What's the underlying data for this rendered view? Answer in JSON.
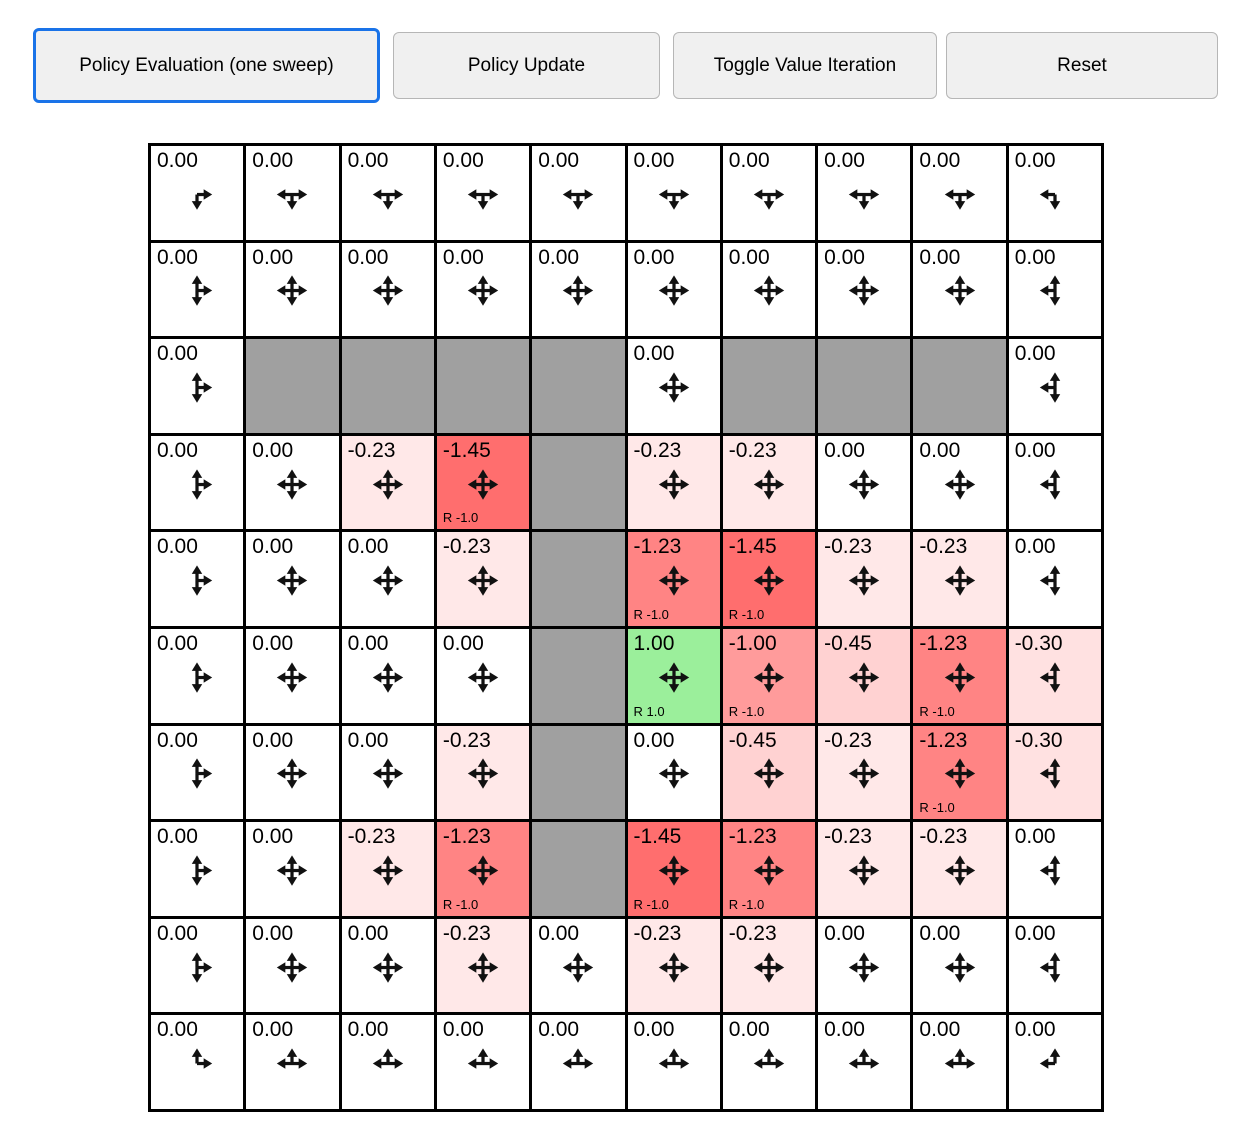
{
  "toolbar": {
    "buttons": [
      {
        "label": "Policy Evaluation (one sweep)",
        "selected": true
      },
      {
        "label": "Policy Update",
        "selected": false
      },
      {
        "label": "Toggle Value Iteration",
        "selected": false
      },
      {
        "label": "Reset",
        "selected": false
      }
    ]
  },
  "colors": {
    "selected_button_border": "#1a73e8",
    "button_border": "#b6b6b6",
    "button_bg": "#f0f0f0",
    "wall_bg": "#a0a0a0",
    "grid_line": "#000000",
    "arrow_color": "#111111"
  },
  "grid": {
    "rows_count": 10,
    "cols_count": 10,
    "rows": [
      [
        {
          "value": "0.00",
          "bg": "#ffffff",
          "arrows": "RD"
        },
        {
          "value": "0.00",
          "bg": "#ffffff",
          "arrows": "LRD"
        },
        {
          "value": "0.00",
          "bg": "#ffffff",
          "arrows": "LRD"
        },
        {
          "value": "0.00",
          "bg": "#ffffff",
          "arrows": "LRD"
        },
        {
          "value": "0.00",
          "bg": "#ffffff",
          "arrows": "LRD"
        },
        {
          "value": "0.00",
          "bg": "#ffffff",
          "arrows": "LRD"
        },
        {
          "value": "0.00",
          "bg": "#ffffff",
          "arrows": "LRD"
        },
        {
          "value": "0.00",
          "bg": "#ffffff",
          "arrows": "LRD"
        },
        {
          "value": "0.00",
          "bg": "#ffffff",
          "arrows": "LRD"
        },
        {
          "value": "0.00",
          "bg": "#ffffff",
          "arrows": "LD"
        }
      ],
      [
        {
          "value": "0.00",
          "bg": "#ffffff",
          "arrows": "UDR"
        },
        {
          "value": "0.00",
          "bg": "#ffffff",
          "arrows": "UDLR"
        },
        {
          "value": "0.00",
          "bg": "#ffffff",
          "arrows": "UDLR"
        },
        {
          "value": "0.00",
          "bg": "#ffffff",
          "arrows": "UDLR"
        },
        {
          "value": "0.00",
          "bg": "#ffffff",
          "arrows": "UDLR"
        },
        {
          "value": "0.00",
          "bg": "#ffffff",
          "arrows": "UDLR"
        },
        {
          "value": "0.00",
          "bg": "#ffffff",
          "arrows": "UDLR"
        },
        {
          "value": "0.00",
          "bg": "#ffffff",
          "arrows": "UDLR"
        },
        {
          "value": "0.00",
          "bg": "#ffffff",
          "arrows": "UDLR"
        },
        {
          "value": "0.00",
          "bg": "#ffffff",
          "arrows": "UDL"
        }
      ],
      [
        {
          "value": "0.00",
          "bg": "#ffffff",
          "arrows": "UDR"
        },
        {
          "wall": true
        },
        {
          "wall": true
        },
        {
          "wall": true
        },
        {
          "wall": true
        },
        {
          "value": "0.00",
          "bg": "#ffffff",
          "arrows": "UDLR"
        },
        {
          "wall": true
        },
        {
          "wall": true
        },
        {
          "wall": true
        },
        {
          "value": "0.00",
          "bg": "#ffffff",
          "arrows": "UDL"
        }
      ],
      [
        {
          "value": "0.00",
          "bg": "#ffffff",
          "arrows": "UDR"
        },
        {
          "value": "0.00",
          "bg": "#ffffff",
          "arrows": "UDLR"
        },
        {
          "value": "-0.23",
          "bg": "#ffe8e8",
          "arrows": "UDLR"
        },
        {
          "value": "-1.45",
          "bg": "#ff6e6e",
          "arrows": "UDLR",
          "reward": "R -1.0"
        },
        {
          "wall": true
        },
        {
          "value": "-0.23",
          "bg": "#ffe8e8",
          "arrows": "UDLR"
        },
        {
          "value": "-0.23",
          "bg": "#ffe8e8",
          "arrows": "UDLR"
        },
        {
          "value": "0.00",
          "bg": "#ffffff",
          "arrows": "UDLR"
        },
        {
          "value": "0.00",
          "bg": "#ffffff",
          "arrows": "UDLR"
        },
        {
          "value": "0.00",
          "bg": "#ffffff",
          "arrows": "UDL"
        }
      ],
      [
        {
          "value": "0.00",
          "bg": "#ffffff",
          "arrows": "UDR"
        },
        {
          "value": "0.00",
          "bg": "#ffffff",
          "arrows": "UDLR"
        },
        {
          "value": "0.00",
          "bg": "#ffffff",
          "arrows": "UDLR"
        },
        {
          "value": "-0.23",
          "bg": "#ffe8e8",
          "arrows": "UDLR"
        },
        {
          "wall": true
        },
        {
          "value": "-1.23",
          "bg": "#ff8484",
          "arrows": "UDLR",
          "reward": "R -1.0"
        },
        {
          "value": "-1.45",
          "bg": "#ff6e6e",
          "arrows": "UDLR",
          "reward": "R -1.0"
        },
        {
          "value": "-0.23",
          "bg": "#ffe8e8",
          "arrows": "UDLR"
        },
        {
          "value": "-0.23",
          "bg": "#ffe8e8",
          "arrows": "UDLR"
        },
        {
          "value": "0.00",
          "bg": "#ffffff",
          "arrows": "UDL"
        }
      ],
      [
        {
          "value": "0.00",
          "bg": "#ffffff",
          "arrows": "UDR"
        },
        {
          "value": "0.00",
          "bg": "#ffffff",
          "arrows": "UDLR"
        },
        {
          "value": "0.00",
          "bg": "#ffffff",
          "arrows": "UDLR"
        },
        {
          "value": "0.00",
          "bg": "#ffffff",
          "arrows": "UDLR"
        },
        {
          "wall": true
        },
        {
          "value": "1.00",
          "bg": "#9bef9b",
          "arrows": "UDLR",
          "reward": "R 1.0"
        },
        {
          "value": "-1.00",
          "bg": "#ff9b9b",
          "arrows": "UDLR",
          "reward": "R -1.0"
        },
        {
          "value": "-0.45",
          "bg": "#ffd2d2",
          "arrows": "UDLR"
        },
        {
          "value": "-1.23",
          "bg": "#ff8484",
          "arrows": "UDLR",
          "reward": "R -1.0"
        },
        {
          "value": "-0.30",
          "bg": "#ffe1e1",
          "arrows": "UDL"
        }
      ],
      [
        {
          "value": "0.00",
          "bg": "#ffffff",
          "arrows": "UDR"
        },
        {
          "value": "0.00",
          "bg": "#ffffff",
          "arrows": "UDLR"
        },
        {
          "value": "0.00",
          "bg": "#ffffff",
          "arrows": "UDLR"
        },
        {
          "value": "-0.23",
          "bg": "#ffe8e8",
          "arrows": "UDLR"
        },
        {
          "wall": true
        },
        {
          "value": "0.00",
          "bg": "#ffffff",
          "arrows": "UDLR"
        },
        {
          "value": "-0.45",
          "bg": "#ffd2d2",
          "arrows": "UDLR"
        },
        {
          "value": "-0.23",
          "bg": "#ffe8e8",
          "arrows": "UDLR"
        },
        {
          "value": "-1.23",
          "bg": "#ff8484",
          "arrows": "UDLR",
          "reward": "R -1.0"
        },
        {
          "value": "-0.30",
          "bg": "#ffe1e1",
          "arrows": "UDL"
        }
      ],
      [
        {
          "value": "0.00",
          "bg": "#ffffff",
          "arrows": "UDR"
        },
        {
          "value": "0.00",
          "bg": "#ffffff",
          "arrows": "UDLR"
        },
        {
          "value": "-0.23",
          "bg": "#ffe8e8",
          "arrows": "UDLR"
        },
        {
          "value": "-1.23",
          "bg": "#ff8484",
          "arrows": "UDLR",
          "reward": "R -1.0"
        },
        {
          "wall": true
        },
        {
          "value": "-1.45",
          "bg": "#ff6e6e",
          "arrows": "UDLR",
          "reward": "R -1.0"
        },
        {
          "value": "-1.23",
          "bg": "#ff8484",
          "arrows": "UDLR",
          "reward": "R -1.0"
        },
        {
          "value": "-0.23",
          "bg": "#ffe8e8",
          "arrows": "UDLR"
        },
        {
          "value": "-0.23",
          "bg": "#ffe8e8",
          "arrows": "UDLR"
        },
        {
          "value": "0.00",
          "bg": "#ffffff",
          "arrows": "UDL"
        }
      ],
      [
        {
          "value": "0.00",
          "bg": "#ffffff",
          "arrows": "UDR"
        },
        {
          "value": "0.00",
          "bg": "#ffffff",
          "arrows": "UDLR"
        },
        {
          "value": "0.00",
          "bg": "#ffffff",
          "arrows": "UDLR"
        },
        {
          "value": "-0.23",
          "bg": "#ffe8e8",
          "arrows": "UDLR"
        },
        {
          "value": "0.00",
          "bg": "#ffffff",
          "arrows": "UDLR"
        },
        {
          "value": "-0.23",
          "bg": "#ffe8e8",
          "arrows": "UDLR"
        },
        {
          "value": "-0.23",
          "bg": "#ffe8e8",
          "arrows": "UDLR"
        },
        {
          "value": "0.00",
          "bg": "#ffffff",
          "arrows": "UDLR"
        },
        {
          "value": "0.00",
          "bg": "#ffffff",
          "arrows": "UDLR"
        },
        {
          "value": "0.00",
          "bg": "#ffffff",
          "arrows": "UDL"
        }
      ],
      [
        {
          "value": "0.00",
          "bg": "#ffffff",
          "arrows": "UR"
        },
        {
          "value": "0.00",
          "bg": "#ffffff",
          "arrows": "ULR"
        },
        {
          "value": "0.00",
          "bg": "#ffffff",
          "arrows": "ULR"
        },
        {
          "value": "0.00",
          "bg": "#ffffff",
          "arrows": "ULR"
        },
        {
          "value": "0.00",
          "bg": "#ffffff",
          "arrows": "ULR"
        },
        {
          "value": "0.00",
          "bg": "#ffffff",
          "arrows": "ULR"
        },
        {
          "value": "0.00",
          "bg": "#ffffff",
          "arrows": "ULR"
        },
        {
          "value": "0.00",
          "bg": "#ffffff",
          "arrows": "ULR"
        },
        {
          "value": "0.00",
          "bg": "#ffffff",
          "arrows": "ULR"
        },
        {
          "value": "0.00",
          "bg": "#ffffff",
          "arrows": "UL"
        }
      ]
    ]
  }
}
